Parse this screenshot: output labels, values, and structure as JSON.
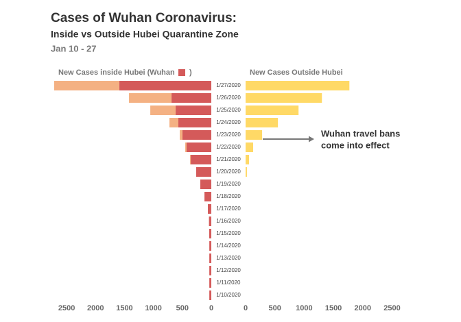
{
  "chart_data": {
    "type": "butterfly",
    "title": "Cases of Wuhan Coronavirus:",
    "subtitle": "Inside vs Outside Hubei Quarantine Zone",
    "date_range": "Jan 10 - 27",
    "left_title": "New Cases inside Hubei  (Wuhan",
    "legend_suffix": ")",
    "right_title": "New Cases Outside Hubei",
    "categories": [
      "1/27/2020",
      "1/26/2020",
      "1/25/2020",
      "1/24/2020",
      "1/23/2020",
      "1/22/2020",
      "1/21/2020",
      "1/20/2020",
      "1/19/2020",
      "1/18/2020",
      "1/17/2020",
      "1/16/2020",
      "1/15/2020",
      "1/14/2020",
      "1/13/2020",
      "1/12/2020",
      "1/11/2020",
      "1/10/2020"
    ],
    "series": [
      {
        "color": "#d45a5a",
        "side": "left",
        "values": [
          1590,
          687,
          616,
          569,
          498,
          427,
          355,
          261,
          190,
          118,
          59,
          40,
          36,
          34,
          34,
          34,
          34,
          34
        ]
      },
      {
        "color": "#f4b183",
        "side": "left",
        "values": [
          1125,
          735,
          438,
          154,
          47,
          23,
          12,
          0,
          0,
          0,
          0,
          0,
          0,
          0,
          0,
          0,
          0,
          0
        ]
      },
      {
        "name": "New Cases Outside Hubei",
        "color": "#ffd966",
        "side": "right",
        "values": [
          1772,
          1303,
          904,
          552,
          282,
          129,
          59,
          23,
          0,
          0,
          0,
          0,
          0,
          0,
          0,
          0,
          0,
          0
        ]
      }
    ],
    "xlim": [
      0,
      2750
    ],
    "xticks": [
      0,
      500,
      1000,
      1500,
      2000,
      2500
    ],
    "x2lim": [
      0,
      2600
    ],
    "x2ticks": [
      0,
      500,
      1000,
      1500,
      2000,
      2500
    ],
    "annotation": [
      "Wuhan travel bans",
      "come into effect"
    ]
  }
}
